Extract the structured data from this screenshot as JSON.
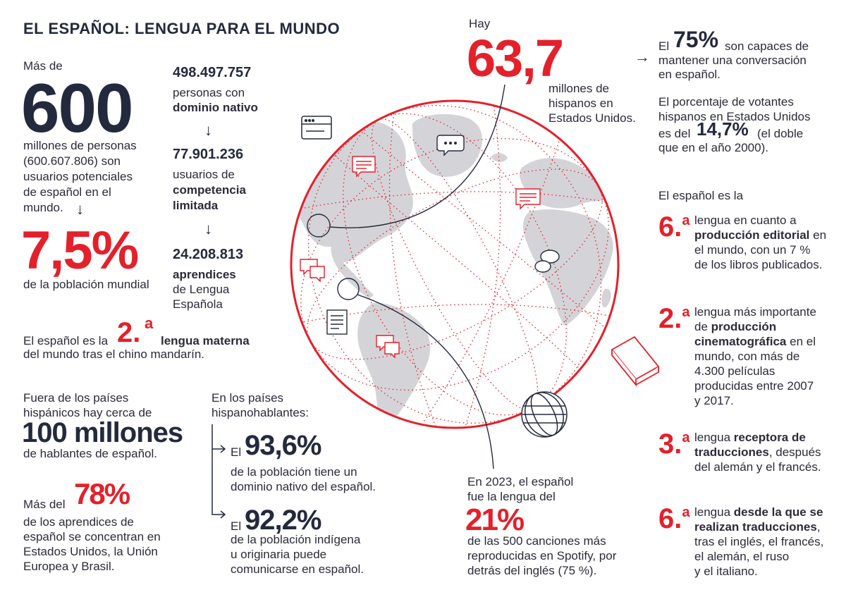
{
  "title": "EL ESPAÑOL: LENGUA PARA EL MUNDO",
  "colors": {
    "red": "#e4202a",
    "navy": "#242a3d",
    "land": "#d4d4d8"
  },
  "left": {
    "intro": "Más de",
    "big": "600",
    "desc": [
      "millones de personas",
      "(600.607.806) son",
      "usuarios potenciales",
      "de español en el",
      "mundo."
    ],
    "arrow": "↓",
    "pct": "7,5%",
    "pct_desc": "de la población mundial"
  },
  "middle": {
    "n1": "498.497.757",
    "n1_desc": "personas con",
    "n1_bold": "dominio nativo",
    "n2": "77.901.236",
    "n2_desc": "usuarios de",
    "n2_bold1": "competencia",
    "n2_bold2": "limitada",
    "n3": "24.208.813",
    "n3_bold": "aprendices",
    "n3_desc1": "de Lengua",
    "n3_desc2": "Española",
    "arrow": "↓"
  },
  "mother_tongue": {
    "pre": "El español es la",
    "ord": "2.",
    "sup": "a",
    "bold": "lengua materna",
    "line2": "del mundo tras el chino mandarín."
  },
  "outside": {
    "line1": "Fuera de los países",
    "line2": "hispánicos hay cerca de",
    "big": "100 millones",
    "line3": "de hablantes de español."
  },
  "learners": {
    "pre": "Más del",
    "pct": "78%",
    "desc": [
      "de los aprendices de",
      "español se concentran en",
      "Estados Unidos, la Unión",
      "Europea y Brasil."
    ]
  },
  "hispanic": {
    "head1": "En los países",
    "head2": "hispanohablantes:",
    "el": "El",
    "p1": "93,6%",
    "p1_desc1": "de la población tiene un",
    "p1_desc2": "dominio nativo del español.",
    "p2": "92,2%",
    "p2_desc1": "de la población indígena",
    "p2_desc2": "u originaria puede",
    "p2_desc3": "comunicarse en español."
  },
  "us": {
    "hay": "Hay",
    "big": "63,7",
    "desc1": "millones de",
    "desc2": "hispanos en",
    "desc3": "Estados Unidos."
  },
  "right": {
    "arrow": "→",
    "el": "El",
    "p75": "75%",
    "p75_desc1": "son capaces de",
    "p75_desc2": "mantener una conversación",
    "p75_desc3": "en español.",
    "votes1": "El porcentaje de votantes",
    "votes2": "hispanos en Estados Unidos",
    "votes3_pre": "es del",
    "votes_pct": "14,7%",
    "votes3_post": "(el doble",
    "votes4": "que en el año 2000).",
    "intro": "El español es la",
    "rankings": [
      {
        "num": "6.",
        "sup": "a",
        "lines": [
          [
            "lengua en cuanto a"
          ],
          [
            "",
            "producción editorial",
            " en"
          ],
          [
            "el mundo, con un 7 %"
          ],
          [
            "de los libros publicados."
          ]
        ]
      },
      {
        "num": "2.",
        "sup": "a",
        "lines": [
          [
            "lengua más importante"
          ],
          [
            "de ",
            "producción",
            ""
          ],
          [
            "",
            "cinematográfica",
            " en el"
          ],
          [
            "mundo, con más de"
          ],
          [
            "4.300 películas"
          ],
          [
            "producidas entre 2007"
          ],
          [
            "y 2017."
          ]
        ]
      },
      {
        "num": "3.",
        "sup": "a",
        "lines": [
          [
            "lengua ",
            "receptora de",
            ""
          ],
          [
            "",
            "traducciones",
            ", después"
          ],
          [
            "del alemán y el francés."
          ]
        ]
      },
      {
        "num": "6.",
        "sup": "a",
        "lines": [
          [
            "lengua ",
            "desde la que se",
            ""
          ],
          [
            "",
            "realizan traducciones",
            ","
          ],
          [
            "tras el inglés, el francés,"
          ],
          [
            "el alemán, el ruso"
          ],
          [
            "y el italiano."
          ]
        ]
      }
    ]
  },
  "spotify": {
    "line1": "En 2023, el español",
    "line2": "fue la lengua del",
    "pct": "21%",
    "desc1": "de las 500 canciones más",
    "desc2": "reproducidas en Spotify, por",
    "desc3": "detrás del inglés (75 %)."
  },
  "icons": [
    "browser-window-icon",
    "speech-bubble-icon",
    "document-icon",
    "book-icon",
    "wire-globe-icon"
  ]
}
